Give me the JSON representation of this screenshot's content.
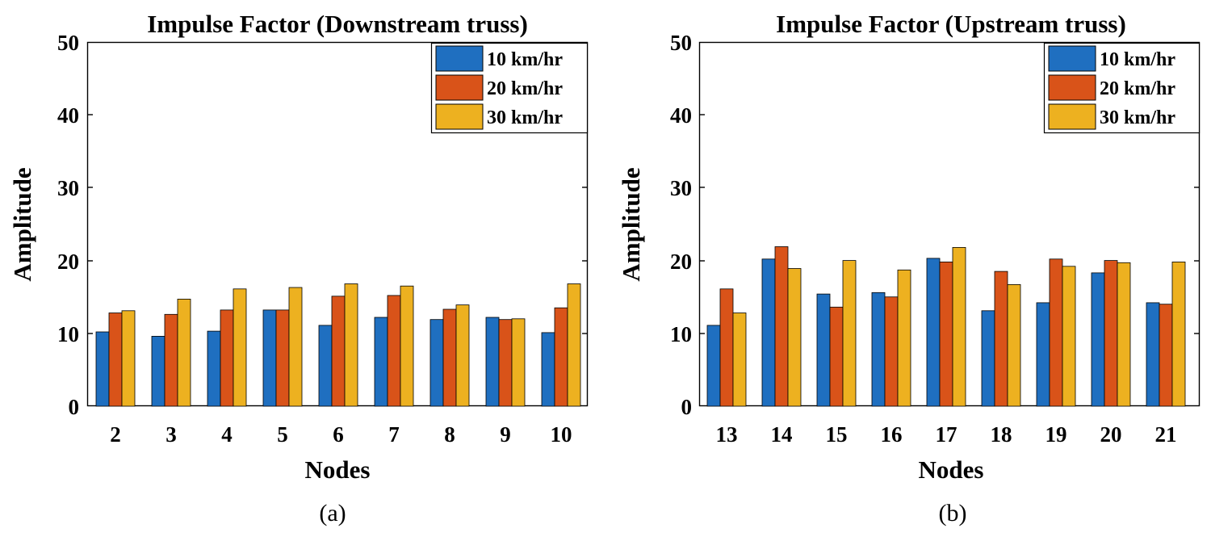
{
  "chart_data": [
    {
      "type": "bar",
      "title": "Impulse Factor (Downstream truss)",
      "xlabel": "Nodes",
      "ylabel": "Amplitude",
      "panel_label": "(a)",
      "ylim": [
        0,
        50
      ],
      "yticks": [
        "0",
        "10",
        "20",
        "30",
        "40",
        "50"
      ],
      "grid": false,
      "legend_position": "top-right",
      "categories": [
        "2",
        "3",
        "4",
        "5",
        "6",
        "7",
        "8",
        "9",
        "10"
      ],
      "series": [
        {
          "name": "10 km/hr",
          "color": "#1f6fc0",
          "values": [
            10.2,
            9.6,
            10.3,
            13.2,
            11.1,
            12.2,
            11.9,
            12.2,
            10.1
          ]
        },
        {
          "name": "20 km/hr",
          "color": "#d95319",
          "values": [
            12.8,
            12.6,
            13.2,
            13.2,
            15.1,
            15.2,
            13.3,
            11.9,
            13.5
          ]
        },
        {
          "name": "30 km/hr",
          "color": "#edb120",
          "values": [
            13.1,
            14.7,
            16.1,
            16.3,
            16.8,
            16.5,
            13.9,
            12.0,
            16.8
          ]
        }
      ]
    },
    {
      "type": "bar",
      "title": "Impulse Factor (Upstream truss)",
      "xlabel": "Nodes",
      "ylabel": "Amplitude",
      "panel_label": "(b)",
      "ylim": [
        0,
        50
      ],
      "yticks": [
        "0",
        "10",
        "20",
        "30",
        "40",
        "50"
      ],
      "grid": false,
      "legend_position": "top-right",
      "categories": [
        "13",
        "14",
        "15",
        "16",
        "17",
        "18",
        "19",
        "20",
        "21"
      ],
      "series": [
        {
          "name": "10 km/hr",
          "color": "#1f6fc0",
          "values": [
            11.1,
            20.2,
            15.4,
            15.6,
            20.3,
            13.1,
            14.2,
            18.3,
            14.2
          ]
        },
        {
          "name": "20 km/hr",
          "color": "#d95319",
          "values": [
            16.1,
            21.9,
            13.6,
            15.0,
            19.8,
            18.5,
            20.2,
            20.0,
            14.0
          ]
        },
        {
          "name": "30 km/hr",
          "color": "#edb120",
          "values": [
            12.8,
            18.9,
            20.0,
            18.7,
            21.8,
            16.7,
            19.2,
            19.7,
            19.8
          ]
        }
      ]
    }
  ]
}
